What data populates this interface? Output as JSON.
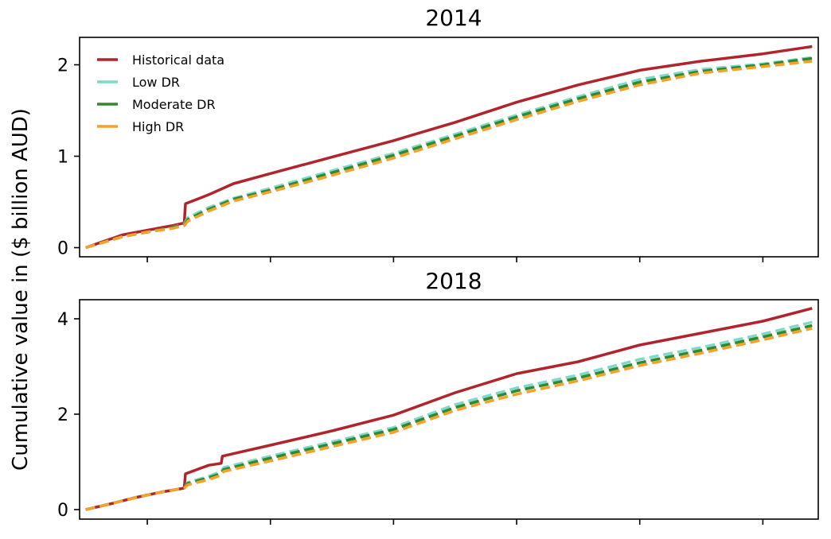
{
  "figure": {
    "ylabel": "Cumulative value in ($ billion AUD)"
  },
  "chart_data": [
    {
      "type": "line",
      "title": "2014",
      "xlabel": "",
      "ylabel": "Cumulative value in ($ billion AUD)",
      "xlim": [
        -0.5,
        59.5
      ],
      "ylim": [
        -0.1,
        2.3
      ],
      "yticks": [
        0,
        1,
        2
      ],
      "ytick_labels": [
        "0",
        "1",
        "2"
      ],
      "xticks": [
        5,
        15,
        25,
        35,
        45,
        55
      ],
      "xtick_labels": [
        "",
        "",
        "",
        "",
        "",
        ""
      ],
      "grid": false,
      "legend": {
        "placement": "top-left",
        "entries": [
          "Historical data",
          "Low DR",
          "Moderate DR",
          "High DR"
        ]
      },
      "series": [
        {
          "name": "Historical data",
          "color": "#b2242c",
          "dash": "solid",
          "x": [
            0,
            1.5,
            3,
            5,
            7,
            8,
            8.1,
            10,
            12,
            15,
            20,
            25,
            30,
            35,
            40,
            45,
            50,
            55,
            59
          ],
          "y": [
            0,
            0.07,
            0.14,
            0.19,
            0.24,
            0.27,
            0.48,
            0.58,
            0.7,
            0.81,
            0.99,
            1.17,
            1.37,
            1.59,
            1.78,
            1.94,
            2.04,
            2.12,
            2.2
          ]
        },
        {
          "name": "Low DR",
          "color": "#7fd8cc",
          "dash": "dashed",
          "x": [
            0,
            1.5,
            3,
            5,
            7,
            8,
            8.3,
            10,
            12,
            15,
            20,
            25,
            30,
            35,
            40,
            45,
            50,
            55,
            59
          ],
          "y": [
            0,
            0.06,
            0.12,
            0.17,
            0.22,
            0.26,
            0.33,
            0.44,
            0.54,
            0.65,
            0.84,
            1.03,
            1.24,
            1.45,
            1.65,
            1.84,
            1.95,
            2.01,
            2.08
          ]
        },
        {
          "name": "Moderate DR",
          "color": "#2f8a2f",
          "dash": "dashed",
          "x": [
            0,
            1.5,
            3,
            5,
            7,
            8,
            8.3,
            10,
            12,
            15,
            20,
            25,
            30,
            35,
            40,
            45,
            50,
            55,
            59
          ],
          "y": [
            0,
            0.06,
            0.12,
            0.17,
            0.22,
            0.25,
            0.31,
            0.42,
            0.53,
            0.63,
            0.82,
            1.01,
            1.22,
            1.43,
            1.63,
            1.81,
            1.93,
            2.0,
            2.07
          ]
        },
        {
          "name": "High DR",
          "color": "#f5a12a",
          "dash": "dashed",
          "x": [
            0,
            1.5,
            3,
            5,
            7,
            8,
            8.3,
            10,
            12,
            15,
            20,
            25,
            30,
            35,
            40,
            45,
            50,
            55,
            59
          ],
          "y": [
            0,
            0.06,
            0.12,
            0.17,
            0.21,
            0.24,
            0.29,
            0.4,
            0.51,
            0.61,
            0.79,
            0.98,
            1.19,
            1.4,
            1.6,
            1.78,
            1.91,
            1.98,
            2.04
          ]
        }
      ]
    },
    {
      "type": "line",
      "title": "2018",
      "xlabel": "",
      "ylabel": "Cumulative value in ($ billion AUD)",
      "xlim": [
        -0.5,
        59.5
      ],
      "ylim": [
        -0.2,
        4.4
      ],
      "yticks": [
        0,
        2,
        4
      ],
      "ytick_labels": [
        "0",
        "2",
        "4"
      ],
      "xticks": [
        5,
        15,
        25,
        35,
        45,
        55
      ],
      "xtick_labels": [
        "",
        "",
        "",
        "",
        "",
        ""
      ],
      "grid": false,
      "legend": {
        "placement": "none",
        "entries": []
      },
      "series": [
        {
          "name": "Historical data",
          "color": "#b2242c",
          "dash": "solid",
          "x": [
            0,
            2,
            4,
            6,
            8,
            8.1,
            10,
            11,
            11.1,
            15,
            20,
            25,
            30,
            35,
            40,
            45,
            50,
            55,
            59
          ],
          "y": [
            0,
            0.12,
            0.25,
            0.36,
            0.45,
            0.75,
            0.93,
            0.97,
            1.12,
            1.35,
            1.65,
            1.98,
            2.45,
            2.85,
            3.1,
            3.45,
            3.7,
            3.95,
            4.22
          ]
        },
        {
          "name": "Low DR",
          "color": "#7fd8cc",
          "dash": "dashed",
          "x": [
            0,
            2,
            4,
            6,
            8,
            8.3,
            10,
            11,
            11.2,
            15,
            20,
            25,
            30,
            35,
            40,
            45,
            50,
            55,
            59
          ],
          "y": [
            0,
            0.12,
            0.25,
            0.36,
            0.45,
            0.57,
            0.7,
            0.8,
            0.88,
            1.12,
            1.42,
            1.72,
            2.2,
            2.55,
            2.82,
            3.15,
            3.4,
            3.68,
            3.93
          ]
        },
        {
          "name": "Moderate DR",
          "color": "#2f8a2f",
          "dash": "dashed",
          "x": [
            0,
            2,
            4,
            6,
            8,
            8.3,
            10,
            11,
            11.2,
            15,
            20,
            25,
            30,
            35,
            40,
            45,
            50,
            55,
            59
          ],
          "y": [
            0,
            0.12,
            0.25,
            0.36,
            0.45,
            0.55,
            0.67,
            0.76,
            0.84,
            1.08,
            1.38,
            1.68,
            2.14,
            2.49,
            2.76,
            3.08,
            3.34,
            3.62,
            3.86
          ]
        },
        {
          "name": "High DR",
          "color": "#f5a12a",
          "dash": "dashed",
          "x": [
            0,
            2,
            4,
            6,
            8,
            8.3,
            10,
            11,
            11.2,
            15,
            20,
            25,
            30,
            35,
            40,
            45,
            50,
            55,
            59
          ],
          "y": [
            0,
            0.12,
            0.25,
            0.36,
            0.45,
            0.52,
            0.63,
            0.72,
            0.8,
            1.02,
            1.32,
            1.62,
            2.08,
            2.42,
            2.7,
            3.02,
            3.28,
            3.56,
            3.8
          ]
        }
      ]
    }
  ]
}
